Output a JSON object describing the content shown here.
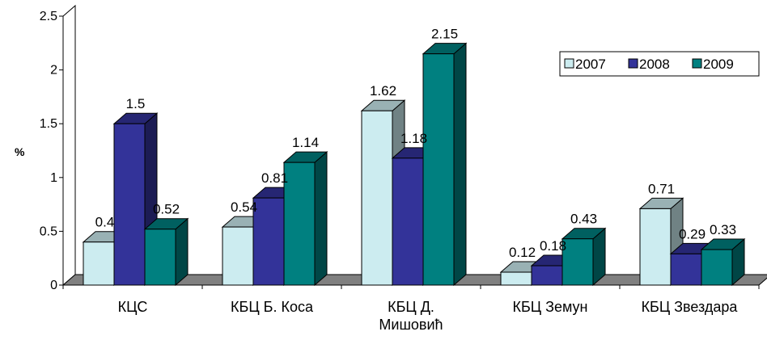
{
  "chart_data": {
    "type": "bar",
    "title": "",
    "xlabel": "",
    "ylabel": "%",
    "ylim": [
      0,
      2.5
    ],
    "yticks": [
      "0",
      "0.5",
      "1",
      "1.5",
      "2",
      "2.5"
    ],
    "grid": false,
    "legend_position": "top-right",
    "categories": [
      [
        "КЦС"
      ],
      [
        "КБЦ Б. Коса"
      ],
      [
        "КБЦ Д.",
        "Мишовић"
      ],
      [
        "КБЦ Земун"
      ],
      [
        "КБЦ Звездара"
      ]
    ],
    "series": [
      {
        "name": "2007",
        "color": "#CCECF0",
        "values": [
          0.4,
          0.54,
          1.62,
          0.12,
          0.71
        ],
        "labels": [
          "0.4",
          "0.54",
          "1.62",
          "0.12",
          "0.71"
        ]
      },
      {
        "name": "2008",
        "color": "#333399",
        "values": [
          1.5,
          0.81,
          1.18,
          0.18,
          0.29
        ],
        "labels": [
          "1.5",
          "0.81",
          "1.18",
          "0.18",
          "0.29"
        ]
      },
      {
        "name": "2009",
        "color": "#008080",
        "values": [
          0.52,
          1.14,
          2.15,
          0.43,
          0.33
        ],
        "labels": [
          "0.52",
          "1.14",
          "2.15",
          "0.43",
          "0.33"
        ]
      }
    ]
  }
}
